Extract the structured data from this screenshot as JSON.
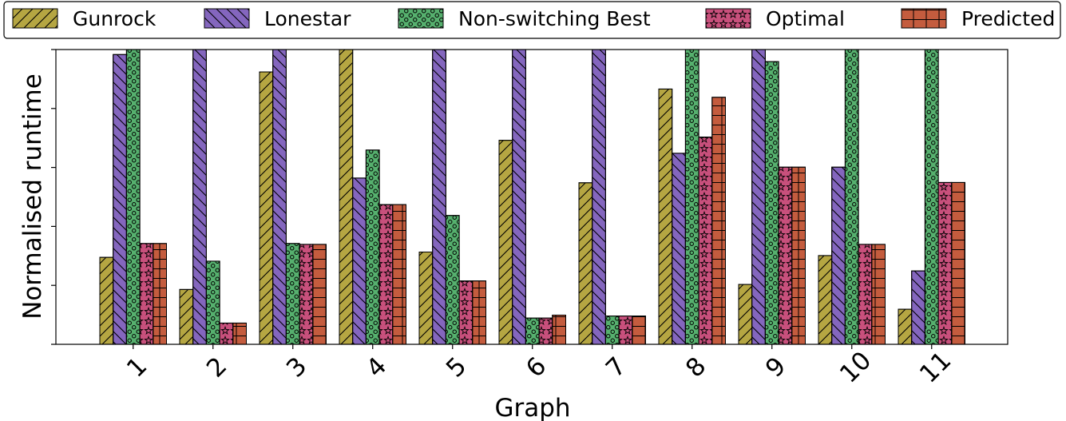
{
  "chart_data": {
    "type": "bar",
    "xlabel": "Graph",
    "ylabel": "Normalised runtime",
    "categories": [
      "1",
      "2",
      "3",
      "4",
      "5",
      "6",
      "7",
      "8",
      "9",
      "10",
      "11"
    ],
    "ylim": [
      0,
      1
    ],
    "grid": false,
    "legend_position": "top",
    "series": [
      {
        "name": "Gunrock",
        "color": "#b5a642",
        "hatch": "diagonal-forward",
        "values": [
          0.295,
          0.186,
          0.924,
          1.0,
          0.313,
          0.692,
          0.548,
          0.866,
          0.203,
          0.301,
          0.119
        ]
      },
      {
        "name": "Lonestar",
        "color": "#8466be",
        "hatch": "diagonal-back",
        "values": [
          0.983,
          1.0,
          1.0,
          0.564,
          1.0,
          1.0,
          1.0,
          0.648,
          1.0,
          0.601,
          0.249
        ]
      },
      {
        "name": "Non-switching Best",
        "color": "#56b06e",
        "hatch": "circles",
        "values": [
          1.0,
          0.282,
          0.342,
          0.659,
          0.437,
          0.089,
          0.096,
          1.0,
          0.959,
          1.0,
          1.0
        ]
      },
      {
        "name": "Optimal",
        "color": "#c8507c",
        "hatch": "stars",
        "values": [
          0.342,
          0.072,
          0.339,
          0.474,
          0.215,
          0.089,
          0.096,
          0.703,
          0.601,
          0.339,
          0.549
        ]
      },
      {
        "name": "Predicted",
        "color": "#c45c3e",
        "hatch": "horizontal",
        "values": [
          0.342,
          0.072,
          0.339,
          0.474,
          0.215,
          0.099,
          0.096,
          0.838,
          0.601,
          0.339,
          0.549
        ]
      }
    ]
  }
}
